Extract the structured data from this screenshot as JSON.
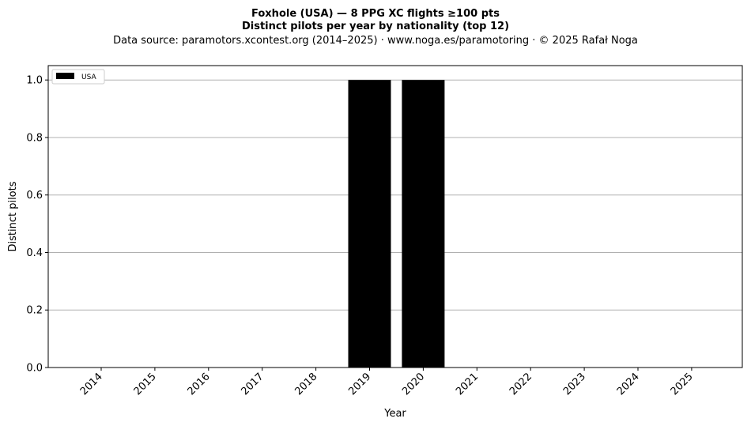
{
  "chart_data": {
    "type": "bar",
    "title": "Foxhole (USA)  —  8 PPG XC flights ≥100 pts",
    "subtitle": "Distinct pilots per year by nationality (top 12)",
    "source": "Data source: paramotors.xcontest.org (2014–2025)  ·  www.noga.es/paramotoring  ·  © 2025 Rafał Noga",
    "xlabel": "Year",
    "ylabel": "Distinct pilots",
    "categories": [
      "2014",
      "2015",
      "2016",
      "2017",
      "2018",
      "2019",
      "2020",
      "2021",
      "2022",
      "2023",
      "2024",
      "2025"
    ],
    "series": [
      {
        "name": "USA",
        "color": "#000000",
        "values": [
          0,
          0,
          0,
          0,
          0,
          1,
          1,
          0,
          0,
          0,
          0,
          0
        ]
      }
    ],
    "ylim": [
      0,
      1.05
    ],
    "yticks": [
      "0.0",
      "0.2",
      "0.4",
      "0.6",
      "0.8",
      "1.0"
    ],
    "grid": "y",
    "legend": "top-left"
  }
}
